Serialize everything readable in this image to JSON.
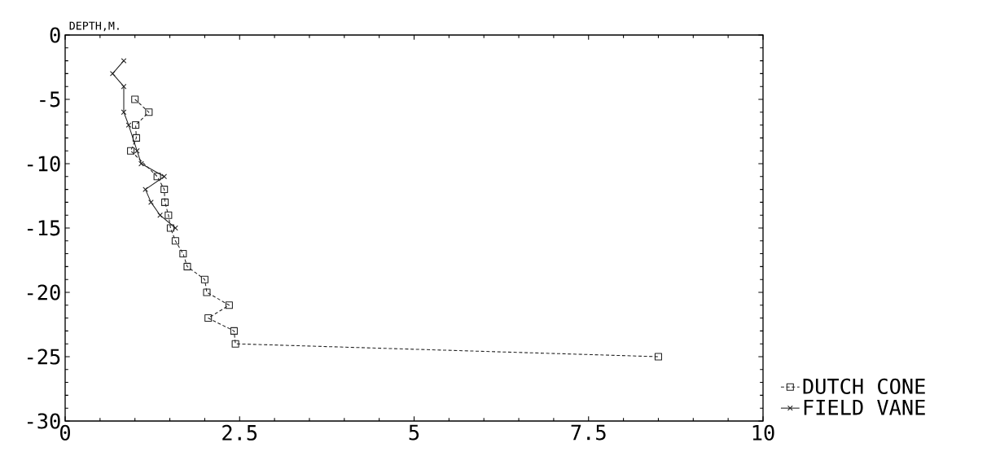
{
  "chart_data": {
    "type": "line",
    "ylabel": "DEPTH,M.",
    "xlim": [
      0,
      10
    ],
    "ylim": [
      -30,
      0
    ],
    "xticks": [
      0,
      2.5,
      5,
      7.5,
      10
    ],
    "yticks": [
      -30,
      -25,
      -20,
      -15,
      -10,
      -5,
      0
    ],
    "grid": false,
    "legend": "bottom right",
    "series": [
      {
        "name": "DUTCH CONE",
        "color": "#222222",
        "marker": "square",
        "line_style": "dashed",
        "x": [
          1.0,
          1.2,
          1.01,
          1.02,
          0.94,
          1.32,
          1.42,
          1.43,
          1.48,
          1.51,
          1.58,
          1.69,
          1.75,
          2.0,
          2.03,
          2.35,
          2.05,
          2.42,
          2.44,
          8.5
        ],
        "values": [
          -5,
          -6,
          -7,
          -8,
          -9,
          -11,
          -12,
          -13,
          -14,
          -15,
          -16,
          -17,
          -18,
          -19,
          -20,
          -21,
          -22,
          -23,
          -24,
          -25
        ]
      },
      {
        "name": "FIELD VANE",
        "color": "#222222",
        "marker": "cross",
        "line_style": "solid",
        "x": [
          0.84,
          0.68,
          0.84,
          0.84,
          0.91,
          1.03,
          1.09,
          1.42,
          1.15,
          1.23,
          1.36,
          1.58
        ],
        "values": [
          -2,
          -3,
          -4,
          -6,
          -7,
          -9,
          -10,
          -11,
          -12,
          -13,
          -14,
          -15
        ]
      }
    ]
  }
}
